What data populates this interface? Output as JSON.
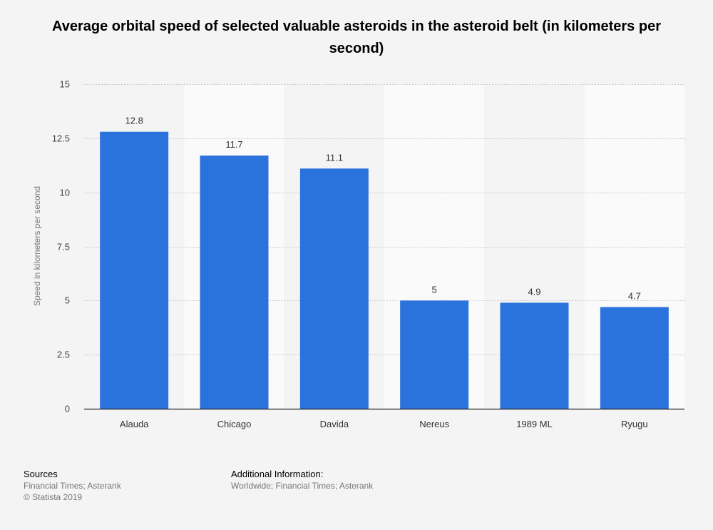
{
  "title": "Average orbital speed of selected valuable asteroids in the asteroid belt (in kilometers per second)",
  "chart_data": {
    "type": "bar",
    "categories": [
      "Alauda",
      "Chicago",
      "Davida",
      "Nereus",
      "1989 ML",
      "Ryugu"
    ],
    "values": [
      12.8,
      11.7,
      11.1,
      5,
      4.9,
      4.7
    ],
    "value_labels": [
      "12.8",
      "11.7",
      "11.1",
      "5",
      "4.9",
      "4.7"
    ],
    "ylabel": "Speed in kilometers per second",
    "xlabel": "",
    "ylim": [
      0,
      15
    ],
    "yticks": [
      0,
      2.5,
      5,
      7.5,
      10,
      12.5,
      15
    ],
    "ytick_labels": [
      "0",
      "2.5",
      "5",
      "7.5",
      "10",
      "12.5",
      "15"
    ],
    "grid": true,
    "bar_color": "#2a72dc"
  },
  "footer": {
    "sources_heading": "Sources",
    "sources_line1": "Financial Times; Asterank",
    "sources_line2": "© Statista 2019",
    "info_heading": "Additional Information:",
    "info_line1": "Worldwide; Financial Times; Asterank"
  }
}
